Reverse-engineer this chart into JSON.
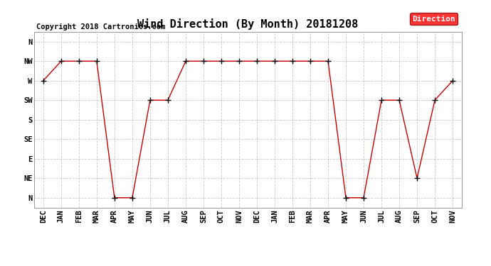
{
  "title": "Wind Direction (By Month) 20181208",
  "copyright": "Copyright 2018 Cartronics.com",
  "legend_label": "Direction",
  "legend_bg": "#ff0000",
  "legend_text_color": "#ffffff",
  "x_labels": [
    "DEC",
    "JAN",
    "FEB",
    "MAR",
    "APR",
    "MAY",
    "JUN",
    "JUL",
    "AUG",
    "SEP",
    "OCT",
    "NOV",
    "DEC",
    "JAN",
    "FEB",
    "MAR",
    "APR",
    "MAY",
    "JUN",
    "JUL",
    "AUG",
    "SEP",
    "OCT",
    "NOV"
  ],
  "y_labels": [
    "N",
    "NE",
    "E",
    "SE",
    "S",
    "SW",
    "W",
    "NW",
    "N"
  ],
  "y_values": [
    0,
    1,
    2,
    3,
    4,
    5,
    6,
    7,
    8
  ],
  "wind_data": [
    6,
    7,
    7,
    7,
    0,
    0,
    5,
    5,
    7,
    7,
    7,
    7,
    7,
    7,
    7,
    7,
    7,
    0,
    0,
    5,
    5,
    1,
    5,
    6
  ],
  "line_color": "#cc0000",
  "marker": "+",
  "marker_color": "#000000",
  "marker_size": 6,
  "background_color": "#ffffff",
  "grid_color": "#bbbbbb",
  "title_fontsize": 11,
  "copyright_fontsize": 7.5,
  "tick_fontsize": 7.5,
  "legend_fontsize": 8
}
